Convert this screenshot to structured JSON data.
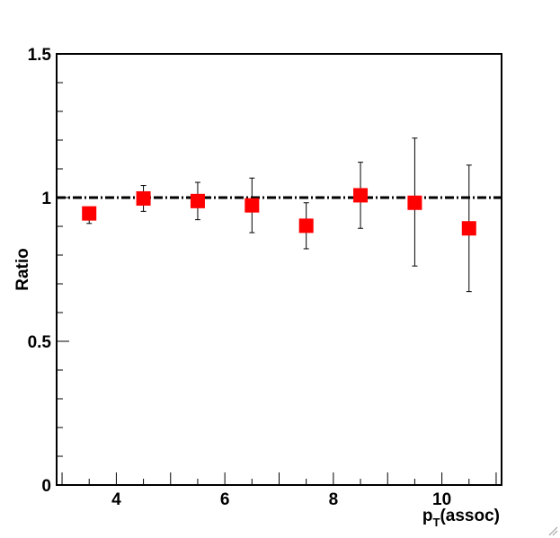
{
  "chart_data": {
    "type": "scatter",
    "title": "",
    "xlabel_main": "p",
    "xlabel_sub": "T",
    "xlabel_rest": "(assoc)",
    "ylabel": "Ratio",
    "xlim": [
      2.9,
      11.1
    ],
    "ylim": [
      0,
      1.5
    ],
    "x_ticks": [
      4,
      6,
      8,
      10
    ],
    "x_tick_labels": [
      "4",
      "6",
      "8",
      "10"
    ],
    "y_ticks": [
      0,
      0.5,
      1,
      1.5
    ],
    "y_tick_labels": [
      "0",
      "0.5",
      "1",
      "1.5"
    ],
    "reference_line": {
      "y": 1.0,
      "style": "dash-dot",
      "color": "#000000"
    },
    "marker_color": "#ff0000",
    "series": [
      {
        "x": [
          3.5,
          4.5,
          5.5,
          6.5,
          7.5,
          8.5,
          9.5,
          10.5
        ],
        "y": [
          0.945,
          0.997,
          0.988,
          0.973,
          0.902,
          1.008,
          0.982,
          0.893
        ],
        "err_low": [
          0.035,
          0.045,
          0.065,
          0.095,
          0.08,
          0.115,
          0.22,
          0.22
        ],
        "err_high": [
          0.02,
          0.045,
          0.065,
          0.095,
          0.08,
          0.115,
          0.225,
          0.22
        ]
      }
    ]
  }
}
